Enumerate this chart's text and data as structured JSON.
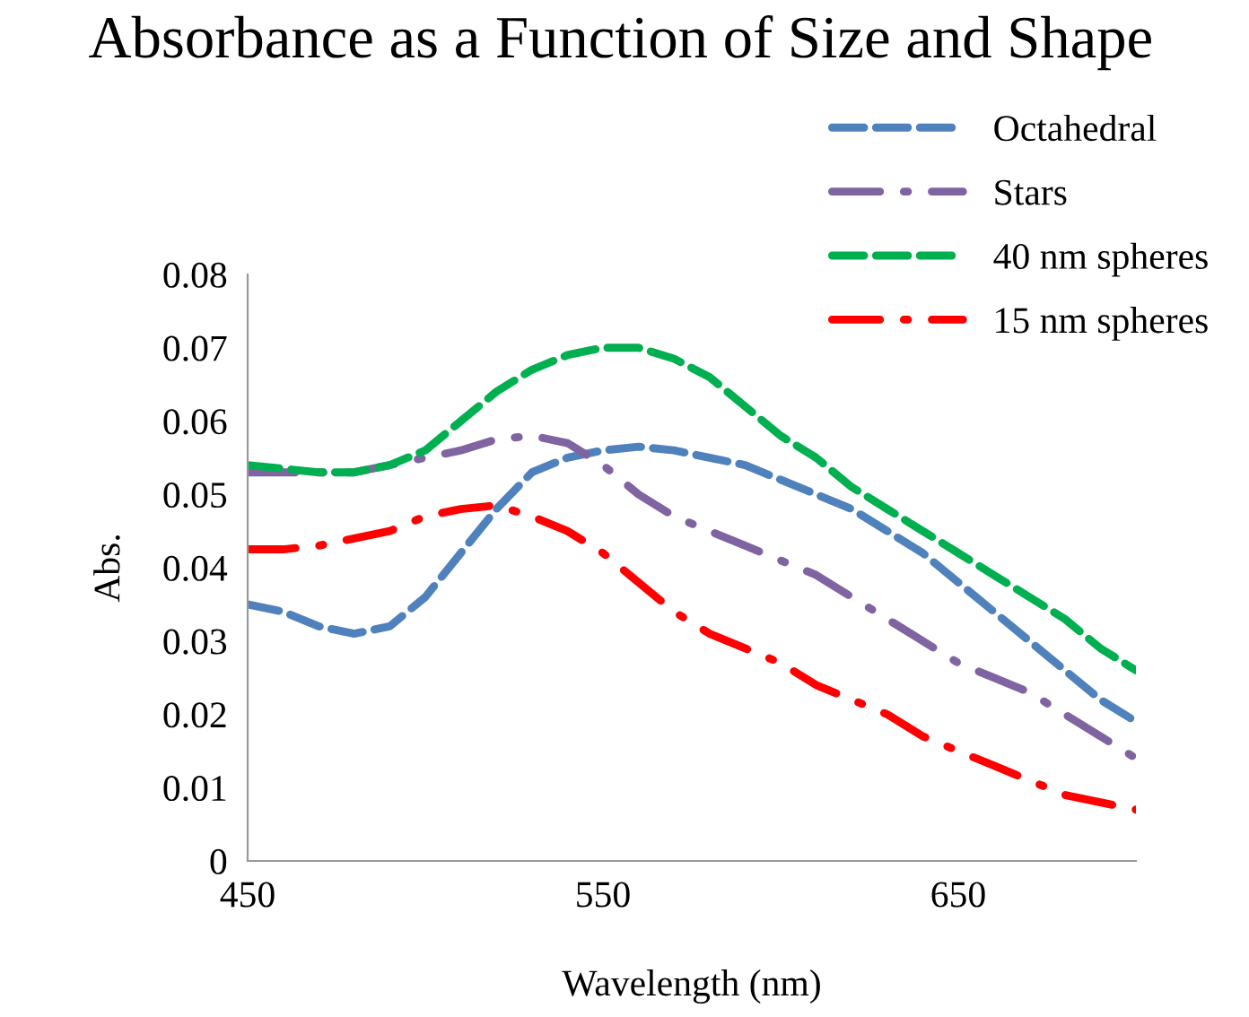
{
  "chart_data": {
    "type": "line",
    "title": "Absorbance as a Function of Size and Shape",
    "xlabel": "Wavelength (nm)",
    "ylabel": "Abs.",
    "x": [
      450,
      460,
      470,
      480,
      490,
      500,
      510,
      520,
      530,
      540,
      550,
      560,
      570,
      580,
      590,
      600,
      610,
      620,
      630,
      640,
      650,
      660,
      670,
      680,
      690,
      700
    ],
    "series": [
      {
        "name": "Octahedral",
        "color": "#4f81bd",
        "line_style": "dashed",
        "values": [
          0.035,
          0.034,
          0.032,
          0.031,
          0.032,
          0.036,
          0.042,
          0.048,
          0.053,
          0.055,
          0.056,
          0.0565,
          0.056,
          0.055,
          0.054,
          0.052,
          0.05,
          0.048,
          0.045,
          0.042,
          0.038,
          0.034,
          0.03,
          0.026,
          0.022,
          0.019
        ]
      },
      {
        "name": "Stars",
        "color": "#8064a2",
        "line_style": "dashdot",
        "values": [
          0.053,
          0.053,
          0.053,
          0.053,
          0.054,
          0.055,
          0.056,
          0.0575,
          0.058,
          0.057,
          0.054,
          0.05,
          0.047,
          0.045,
          0.043,
          0.041,
          0.039,
          0.036,
          0.033,
          0.03,
          0.027,
          0.025,
          0.023,
          0.02,
          0.017,
          0.014
        ]
      },
      {
        "name": "40 nm spheres",
        "color": "#00b050",
        "line_style": "dashed",
        "values": [
          0.054,
          0.0535,
          0.053,
          0.053,
          0.054,
          0.056,
          0.06,
          0.064,
          0.067,
          0.069,
          0.07,
          0.07,
          0.0685,
          0.066,
          0.062,
          0.058,
          0.055,
          0.051,
          0.048,
          0.045,
          0.042,
          0.039,
          0.036,
          0.033,
          0.029,
          0.026
        ]
      },
      {
        "name": "15 nm spheres",
        "color": "#ff0000",
        "line_style": "dashdot",
        "values": [
          0.0425,
          0.0425,
          0.043,
          0.044,
          0.045,
          0.047,
          0.048,
          0.0485,
          0.047,
          0.045,
          0.042,
          0.038,
          0.034,
          0.031,
          0.029,
          0.027,
          0.024,
          0.022,
          0.02,
          0.017,
          0.015,
          0.013,
          0.011,
          0.009,
          0.008,
          0.007
        ]
      }
    ],
    "xlim": [
      450,
      700
    ],
    "xticks": [
      450,
      550,
      650
    ],
    "ylim": [
      0,
      0.08
    ],
    "yticks": [
      0,
      0.01,
      0.02,
      0.03,
      0.04,
      0.05,
      0.06,
      0.07,
      0.08
    ],
    "grid": false,
    "legend": "top right"
  }
}
